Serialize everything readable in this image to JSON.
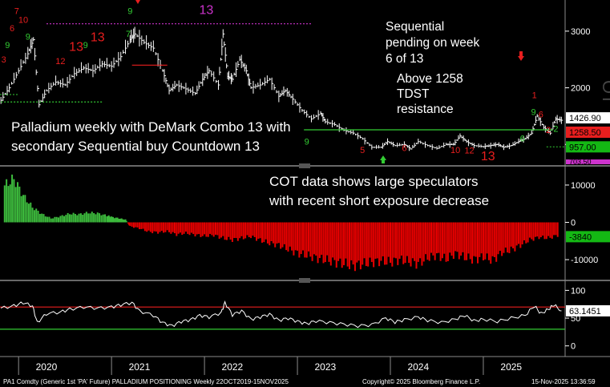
{
  "annotations": {
    "main": [
      "Palladium weekly with DeMark Combo 13 with",
      "secondary Sequential buy Countdown 13"
    ],
    "cot": [
      "COT data shows large speculators",
      "with recent short exposure decrease"
    ],
    "sequential": [
      "Sequential",
      "pending on week",
      "6 of 13"
    ],
    "tdst": [
      "Above 1258",
      "TDST",
      "resistance"
    ]
  },
  "footer": {
    "left": "PA1 Comdty (Generic 1st 'PA' Future) PALLADIUM POSITIONING Weekly 22OCT2019-15NOV2025",
    "center": "Copyright© 2025 Bloomberg Finance L.P.",
    "right": "15-Nov-2025 13:36:59"
  },
  "colors": {
    "background": "#000000",
    "price": "#ffffff",
    "tdst_line": "#33cc33",
    "resistance_line": "#e81e1e",
    "magenta_line": "#cc33cc",
    "cot_positive": "#3dbb3d",
    "cot_negative": "#e80000",
    "last_price_tag": "#ffffff",
    "tdst_tag": "#e81e1e",
    "support_tag": "#14b814",
    "cot_tag": "#14b814",
    "osc_tag": "#ffffff"
  },
  "chart_data": [
    {
      "type": "line",
      "panel": "price",
      "title": "",
      "x_range": [
        2019.8,
        2025.88
      ],
      "y_range": [
        650,
        3550
      ],
      "y_ticks": [
        "1000",
        "2000",
        "3000"
      ],
      "last_values": {
        "price": "1426.90",
        "tdst": "1258.50",
        "support": "957.00",
        "low": "703.50"
      },
      "label": "OT",
      "points": [
        [
          2019.81,
          1780
        ],
        [
          2019.9,
          2000
        ],
        [
          2020.0,
          2300
        ],
        [
          2020.1,
          2600
        ],
        [
          2020.16,
          2850
        ],
        [
          2020.22,
          1700
        ],
        [
          2020.3,
          1950
        ],
        [
          2020.4,
          2100
        ],
        [
          2020.5,
          2050
        ],
        [
          2020.6,
          2250
        ],
        [
          2020.7,
          2350
        ],
        [
          2020.8,
          2300
        ],
        [
          2020.9,
          2420
        ],
        [
          2021.0,
          2380
        ],
        [
          2021.1,
          2550
        ],
        [
          2021.2,
          2850
        ],
        [
          2021.25,
          2950
        ],
        [
          2021.35,
          2800
        ],
        [
          2021.45,
          2700
        ],
        [
          2021.55,
          2300
        ],
        [
          2021.62,
          1950
        ],
        [
          2021.7,
          2050
        ],
        [
          2021.8,
          1980
        ],
        [
          2021.9,
          1900
        ],
        [
          2021.98,
          2150
        ],
        [
          2022.05,
          2300
        ],
        [
          2022.15,
          2050
        ],
        [
          2022.2,
          2950
        ],
        [
          2022.25,
          2200
        ],
        [
          2022.3,
          2150
        ],
        [
          2022.38,
          2500
        ],
        [
          2022.45,
          2300
        ],
        [
          2022.5,
          2000
        ],
        [
          2022.6,
          2050
        ],
        [
          2022.7,
          2150
        ],
        [
          2022.8,
          1850
        ],
        [
          2022.87,
          1950
        ],
        [
          2022.95,
          1800
        ],
        [
          2023.05,
          1600
        ],
        [
          2023.15,
          1450
        ],
        [
          2023.25,
          1550
        ],
        [
          2023.3,
          1400
        ],
        [
          2023.4,
          1350
        ],
        [
          2023.5,
          1250
        ],
        [
          2023.6,
          1200
        ],
        [
          2023.7,
          1100
        ],
        [
          2023.8,
          950
        ],
        [
          2023.9,
          950
        ],
        [
          2023.97,
          1050
        ],
        [
          2024.05,
          980
        ],
        [
          2024.15,
          1000
        ],
        [
          2024.22,
          920
        ],
        [
          2024.3,
          1050
        ],
        [
          2024.4,
          980
        ],
        [
          2024.5,
          930
        ],
        [
          2024.6,
          1000
        ],
        [
          2024.68,
          1000
        ],
        [
          2024.75,
          1150
        ],
        [
          2024.82,
          1050
        ],
        [
          2024.9,
          980
        ],
        [
          2025.0,
          960
        ],
        [
          2025.08,
          980
        ],
        [
          2025.15,
          1000
        ],
        [
          2025.22,
          950
        ],
        [
          2025.3,
          980
        ],
        [
          2025.38,
          1050
        ],
        [
          2025.45,
          1100
        ],
        [
          2025.52,
          1200
        ],
        [
          2025.58,
          1500
        ],
        [
          2025.65,
          1300
        ],
        [
          2025.72,
          1200
        ],
        [
          2025.78,
          1450
        ],
        [
          2025.84,
          1426.9
        ]
      ],
      "tdst_support": [
        [
          2019.81,
          1750
        ],
        [
          2020.9,
          1750
        ]
      ],
      "tdst_resistance": [
        [
          2023.07,
          1258.5
        ],
        [
          2025.75,
          1258.5
        ]
      ],
      "resistance_line": [
        [
          2021.22,
          2400
        ],
        [
          2021.6,
          2400
        ]
      ],
      "magenta_line": [
        [
          2020.3,
          3130
        ],
        [
          2023.15,
          3130
        ]
      ],
      "green_dotted": [
        [
          2025.68,
          957
        ]
      ],
      "countdown_labels": [
        {
          "x": 2019.84,
          "y": 2450,
          "text": "3",
          "color": "red"
        },
        {
          "x": 2019.88,
          "y": 2700,
          "text": "9",
          "color": "green"
        },
        {
          "x": 2019.93,
          "y": 3000,
          "text": "6",
          "color": "red"
        },
        {
          "x": 2019.98,
          "y": 3300,
          "text": "7",
          "color": "red"
        },
        {
          "x": 2020.05,
          "y": 3150,
          "text": "10",
          "color": "red"
        },
        {
          "x": 2020.1,
          "y": 2850,
          "text": "9",
          "color": "green"
        },
        {
          "x": 2020.45,
          "y": 2420,
          "text": "12",
          "color": "red"
        },
        {
          "x": 2020.62,
          "y": 2650,
          "text": "13",
          "color": "red"
        },
        {
          "x": 2020.72,
          "y": 2700,
          "text": "9",
          "color": "green"
        },
        {
          "x": 2020.85,
          "y": 2820,
          "text": "13",
          "color": "red"
        },
        {
          "x": 2021.2,
          "y": 3300,
          "text": "9",
          "color": "green"
        },
        {
          "x": 2021.18,
          "y": 2900,
          "text": "7",
          "color": "green"
        },
        {
          "x": 2022.02,
          "y": 3300,
          "text": "13",
          "color": "magenta"
        },
        {
          "x": 2023.1,
          "y": 1000,
          "text": "9",
          "color": "green"
        },
        {
          "x": 2023.7,
          "y": 850,
          "text": "5",
          "color": "red"
        },
        {
          "x": 2024.15,
          "y": 880,
          "text": "6",
          "color": "red"
        },
        {
          "x": 2024.7,
          "y": 850,
          "text": "10",
          "color": "red"
        },
        {
          "x": 2024.85,
          "y": 840,
          "text": "12",
          "color": "red"
        },
        {
          "x": 2025.05,
          "y": 720,
          "text": "13",
          "color": "red"
        },
        {
          "x": 2025.42,
          "y": 1050,
          "text": "6",
          "color": "green"
        },
        {
          "x": 2025.54,
          "y": 1520,
          "text": "9",
          "color": "green"
        },
        {
          "x": 2025.55,
          "y": 1820,
          "text": "1",
          "color": "red"
        },
        {
          "x": 2025.62,
          "y": 1480,
          "text": "6",
          "color": "red"
        },
        {
          "x": 2025.7,
          "y": 1200,
          "text": "2",
          "color": "red"
        },
        {
          "x": 2025.78,
          "y": 1220,
          "text": "2",
          "color": "green"
        }
      ]
    },
    {
      "type": "bar",
      "panel": "cot",
      "title": "",
      "x_range": [
        2019.8,
        2025.88
      ],
      "y_range": [
        -14500,
        14500
      ],
      "y_ticks": [
        "10000",
        "0",
        "-10000"
      ],
      "last_value": "-3840",
      "values": [
        [
          2019.85,
          11000
        ],
        [
          2019.95,
          13000
        ],
        [
          2020.05,
          8000
        ],
        [
          2020.15,
          4500
        ],
        [
          2020.25,
          2500
        ],
        [
          2020.35,
          1200
        ],
        [
          2020.45,
          1800
        ],
        [
          2020.55,
          2600
        ],
        [
          2020.65,
          2400
        ],
        [
          2020.75,
          2900
        ],
        [
          2020.85,
          2700
        ],
        [
          2020.95,
          2000
        ],
        [
          2021.0,
          1600
        ],
        [
          2021.08,
          1200
        ],
        [
          2021.15,
          800
        ],
        [
          2021.2,
          -1200
        ],
        [
          2021.3,
          -1800
        ],
        [
          2021.4,
          -2800
        ],
        [
          2021.5,
          -3000
        ],
        [
          2021.6,
          -2700
        ],
        [
          2021.7,
          -3600
        ],
        [
          2021.8,
          -3200
        ],
        [
          2021.9,
          -3700
        ],
        [
          2022.0,
          -4100
        ],
        [
          2022.1,
          -3800
        ],
        [
          2022.2,
          -4700
        ],
        [
          2022.3,
          -5200
        ],
        [
          2022.4,
          -4700
        ],
        [
          2022.5,
          -4200
        ],
        [
          2022.6,
          -5300
        ],
        [
          2022.7,
          -6200
        ],
        [
          2022.8,
          -6800
        ],
        [
          2022.9,
          -8000
        ],
        [
          2023.0,
          -9200
        ],
        [
          2023.1,
          -9800
        ],
        [
          2023.2,
          -10600
        ],
        [
          2023.3,
          -11200
        ],
        [
          2023.4,
          -11800
        ],
        [
          2023.5,
          -12300
        ],
        [
          2023.6,
          -12900
        ],
        [
          2023.7,
          -12400
        ],
        [
          2023.8,
          -11900
        ],
        [
          2023.9,
          -11500
        ],
        [
          2024.0,
          -11900
        ],
        [
          2024.1,
          -11100
        ],
        [
          2024.2,
          -11700
        ],
        [
          2024.3,
          -12300
        ],
        [
          2024.4,
          -10600
        ],
        [
          2024.5,
          -9800
        ],
        [
          2024.6,
          -11000
        ],
        [
          2024.7,
          -9300
        ],
        [
          2024.8,
          -10400
        ],
        [
          2024.9,
          -11100
        ],
        [
          2025.0,
          -10300
        ],
        [
          2025.1,
          -11300
        ],
        [
          2025.2,
          -9000
        ],
        [
          2025.3,
          -8200
        ],
        [
          2025.4,
          -6800
        ],
        [
          2025.5,
          -5200
        ],
        [
          2025.6,
          -4400
        ],
        [
          2025.7,
          -4700
        ],
        [
          2025.8,
          -3840
        ]
      ]
    },
    {
      "type": "line",
      "panel": "oscillator",
      "title": "",
      "x_range": [
        2019.8,
        2025.88
      ],
      "y_range": [
        -12,
        115
      ],
      "y_ticks": [
        "100",
        "50",
        "0"
      ],
      "last_value": "63.1451",
      "upper_level": 70,
      "lower_level": 30,
      "points": [
        [
          2019.81,
          68
        ],
        [
          2019.95,
          72
        ],
        [
          2020.05,
          78
        ],
        [
          2020.15,
          72
        ],
        [
          2020.2,
          42
        ],
        [
          2020.3,
          58
        ],
        [
          2020.45,
          61
        ],
        [
          2020.55,
          66
        ],
        [
          2020.7,
          70
        ],
        [
          2020.85,
          68
        ],
        [
          2021.0,
          70
        ],
        [
          2021.1,
          74
        ],
        [
          2021.22,
          78
        ],
        [
          2021.3,
          63
        ],
        [
          2021.45,
          55
        ],
        [
          2021.55,
          42
        ],
        [
          2021.65,
          36
        ],
        [
          2021.75,
          44
        ],
        [
          2021.85,
          47
        ],
        [
          2021.95,
          55
        ],
        [
          2022.05,
          52
        ],
        [
          2022.18,
          60
        ],
        [
          2022.22,
          78
        ],
        [
          2022.3,
          56
        ],
        [
          2022.4,
          63
        ],
        [
          2022.5,
          48
        ],
        [
          2022.6,
          52
        ],
        [
          2022.7,
          57
        ],
        [
          2022.8,
          46
        ],
        [
          2022.9,
          50
        ],
        [
          2023.0,
          44
        ],
        [
          2023.1,
          40
        ],
        [
          2023.2,
          45
        ],
        [
          2023.35,
          42
        ],
        [
          2023.5,
          39
        ],
        [
          2023.65,
          36
        ],
        [
          2023.8,
          38
        ],
        [
          2023.95,
          50
        ],
        [
          2024.05,
          43
        ],
        [
          2024.15,
          47
        ],
        [
          2024.3,
          52
        ],
        [
          2024.4,
          46
        ],
        [
          2024.55,
          42
        ],
        [
          2024.7,
          48
        ],
        [
          2024.8,
          55
        ],
        [
          2024.9,
          45
        ],
        [
          2025.0,
          48
        ],
        [
          2025.15,
          44
        ],
        [
          2025.3,
          50
        ],
        [
          2025.45,
          55
        ],
        [
          2025.55,
          72
        ],
        [
          2025.62,
          58
        ],
        [
          2025.7,
          66
        ],
        [
          2025.76,
          74
        ],
        [
          2025.84,
          63.1
        ]
      ]
    },
    {
      "type": "axis",
      "panel": "x-axis",
      "year_labels": [
        "2020",
        "2021",
        "2022",
        "2023",
        "2024",
        "2025"
      ],
      "year_label_positions": [
        2020.3,
        2021.3,
        2022.3,
        2023.3,
        2024.3,
        2025.3
      ],
      "year_boundaries": [
        2020.0,
        2021.0,
        2022.0,
        2023.0,
        2024.0,
        2025.0
      ]
    }
  ]
}
